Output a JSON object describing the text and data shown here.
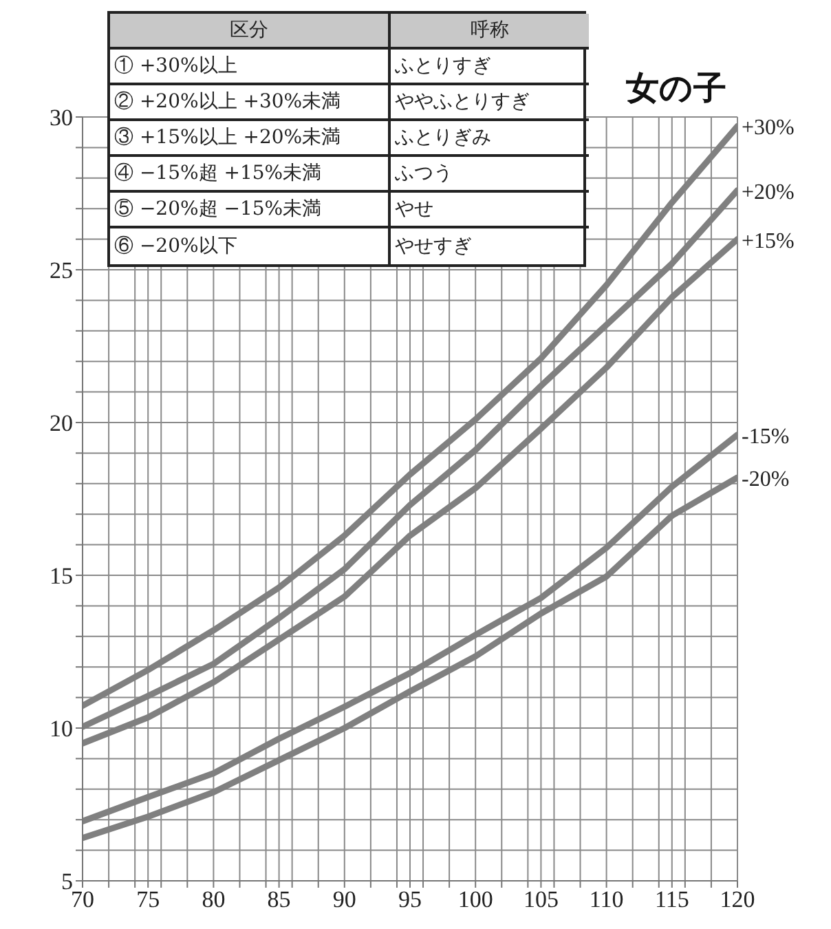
{
  "chart_data": {
    "type": "line",
    "title": "女の子",
    "x": [
      70,
      75,
      80,
      85,
      90,
      95,
      100,
      105,
      110,
      115,
      120
    ],
    "series": [
      {
        "name": "+30%",
        "color": "#808080",
        "values": [
          10.73,
          11.9,
          13.2,
          14.6,
          16.3,
          18.3,
          20.1,
          22.1,
          24.5,
          27.2,
          29.7
        ]
      },
      {
        "name": "+20%",
        "color": "#808080",
        "values": [
          10.04,
          11.05,
          12.1,
          13.6,
          15.2,
          17.3,
          19.1,
          21.2,
          23.2,
          25.2,
          27.6
        ]
      },
      {
        "name": "+15%",
        "color": "#808080",
        "values": [
          9.5,
          10.35,
          11.5,
          12.9,
          14.3,
          16.3,
          17.85,
          19.8,
          21.8,
          24.1,
          26.0
        ]
      },
      {
        "name": "-15%",
        "color": "#808080",
        "values": [
          6.95,
          7.74,
          8.52,
          9.65,
          10.7,
          11.8,
          13.05,
          14.26,
          15.9,
          17.9,
          19.6
        ]
      },
      {
        "name": "-20%",
        "color": "#808080",
        "values": [
          6.4,
          7.1,
          7.9,
          8.95,
          10.0,
          11.2,
          12.35,
          13.75,
          14.96,
          16.95,
          18.2
        ]
      }
    ],
    "xlim": [
      70,
      120
    ],
    "xticks": [
      70,
      {
        "value": 72,
        "label": null
      },
      {
        "value": 74,
        "label": null
      },
      75,
      {
        "value": 76,
        "label": null
      },
      {
        "value": 78,
        "label": null
      },
      80,
      {
        "value": 82,
        "label": null
      },
      {
        "value": 84,
        "label": null
      },
      85,
      {
        "value": 86,
        "label": null
      },
      {
        "value": 88,
        "label": null
      },
      90,
      {
        "value": 92,
        "label": null
      },
      {
        "value": 94,
        "label": null
      },
      95,
      {
        "value": 96,
        "label": null
      },
      {
        "value": 98,
        "label": null
      },
      100,
      {
        "value": 102,
        "label": null
      },
      {
        "value": 104,
        "label": null
      },
      105,
      {
        "value": 106,
        "label": null
      },
      {
        "value": 108,
        "label": null
      },
      110,
      {
        "value": 112,
        "label": null
      },
      {
        "value": 114,
        "label": null
      },
      115,
      {
        "value": 116,
        "label": null
      },
      {
        "value": 118,
        "label": null
      },
      120
    ],
    "ylim": [
      5,
      30
    ],
    "yticks": [
      5,
      {
        "value": 6,
        "label": null
      },
      {
        "value": 7,
        "label": null
      },
      {
        "value": 8,
        "label": null
      },
      {
        "value": 9,
        "label": null
      },
      10,
      {
        "value": 11,
        "label": null
      },
      {
        "value": 12,
        "label": null
      },
      {
        "value": 13,
        "label": null
      },
      {
        "value": 14,
        "label": null
      },
      15,
      {
        "value": 16,
        "label": null
      },
      {
        "value": 17,
        "label": null
      },
      {
        "value": 18,
        "label": null
      },
      {
        "value": 19,
        "label": null
      },
      20,
      {
        "value": 21,
        "label": null
      },
      {
        "value": 22,
        "label": null
      },
      {
        "value": 23,
        "label": null
      },
      {
        "value": 24,
        "label": null
      },
      25,
      {
        "value": 26,
        "label": null
      },
      {
        "value": 27,
        "label": null
      },
      {
        "value": 28,
        "label": null
      },
      {
        "value": 29,
        "label": null
      },
      30
    ],
    "grid": true,
    "marker": "none",
    "line_style": "solid",
    "annotations": [
      "区分",
      "呼称",
      "① +30%以上",
      "ふとりすぎ",
      "② +20%以上 +30%未満",
      "ややふとりすぎ",
      "③ +15%以上 +20%未満",
      "ふとりぎみ",
      "④ −15%超 +15%未満",
      "ふつう",
      "⑤ −20%超 −15%未満",
      "やせ",
      "⑥ −20%以下",
      "やせすぎ"
    ]
  }
}
